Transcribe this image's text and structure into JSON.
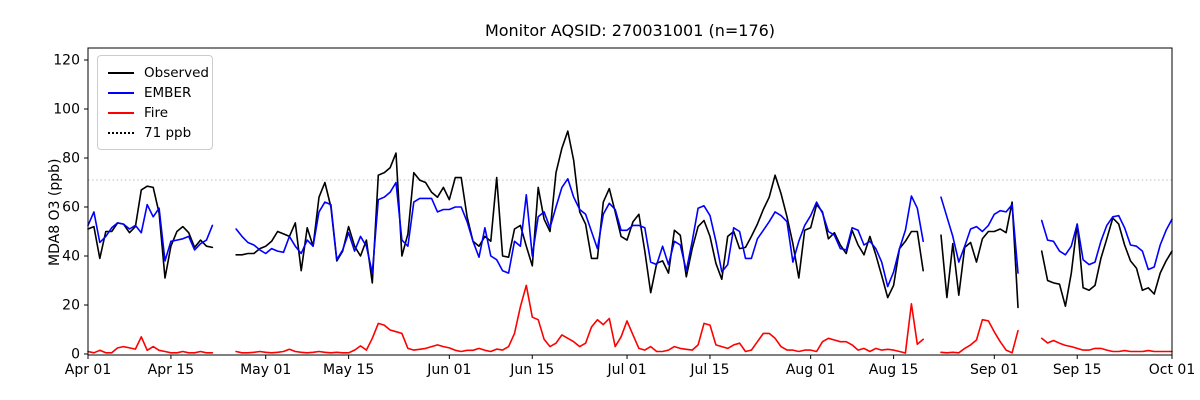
{
  "chart_data": {
    "type": "line",
    "title": "Monitor AQSID: 270031001 (n=176)",
    "ylabel": "MDA8 O3 (ppb)",
    "xlabel": "",
    "n_points": 176,
    "grid": false,
    "legend_position": "upper left",
    "ylim": [
      -0.41,
      124.9
    ],
    "y_ticks": [
      0,
      20,
      40,
      60,
      80,
      100,
      120
    ],
    "n_days": 184,
    "x_start_date": "Apr 01",
    "x_end_date": "Oct 01",
    "x_tick_days": [
      0,
      14,
      30,
      44,
      61,
      75,
      91,
      105,
      122,
      136,
      153,
      167,
      183
    ],
    "x_tick_labels": [
      "Apr 01",
      "Apr 15",
      "May 01",
      "May 15",
      "Jun 01",
      "Jun 15",
      "Jul 01",
      "Jul 15",
      "Aug 01",
      "Aug 15",
      "Sep 01",
      "Sep 15",
      "Oct 01"
    ],
    "threshold": {
      "value": 71,
      "label": "71 ppb",
      "color": "#cfcfcf",
      "style": "dotted"
    },
    "series": [
      {
        "name": "Observed",
        "color": "#000000",
        "values": [
          51,
          52,
          39,
          50,
          50,
          53.5,
          53,
          49.5,
          52,
          67,
          68.5,
          68,
          57.5,
          31,
          44,
          50,
          52,
          49.5,
          43.5,
          46.5,
          44,
          43.5,
          null,
          null,
          null,
          40.5,
          40.5,
          41,
          41,
          43,
          44,
          46,
          50,
          49,
          48,
          53.5,
          34,
          51.5,
          44,
          64,
          70,
          60,
          38,
          42,
          52,
          44,
          40,
          46.5,
          29,
          73,
          74,
          76,
          82,
          40,
          49,
          74,
          71,
          70,
          66,
          64,
          68,
          63,
          72,
          72,
          56,
          46,
          44,
          48,
          46,
          72,
          40,
          39.5,
          51,
          52.5,
          44,
          36,
          68,
          55,
          50,
          74,
          84,
          91,
          79,
          58,
          53,
          39,
          39,
          62,
          67.5,
          58,
          48,
          46.5,
          54,
          57,
          42,
          25,
          37,
          38,
          33,
          50.5,
          48.5,
          31.5,
          43,
          52,
          54.5,
          48,
          37,
          30.5,
          48,
          50,
          43,
          43.5,
          48,
          53,
          59,
          64,
          73,
          65.5,
          56,
          45,
          31,
          50.5,
          51.5,
          61,
          58,
          47,
          49.5,
          44.5,
          41,
          50.5,
          44.5,
          40.5,
          48,
          40.5,
          32,
          23,
          28,
          43,
          46,
          50,
          50,
          34,
          null,
          null,
          48.5,
          23,
          45,
          24,
          43.5,
          45.5,
          37.5,
          47,
          50,
          50,
          51,
          49.5,
          62,
          19,
          null,
          null,
          null,
          42,
          30,
          29,
          28.5,
          19.5,
          33,
          53,
          27,
          26,
          28,
          39,
          47,
          55.5,
          53,
          44.5,
          38,
          35,
          26,
          27,
          24.5,
          33,
          38,
          42
        ]
      },
      {
        "name": "EMBER",
        "color": "#0000ff",
        "values": [
          52.5,
          58,
          45.5,
          48,
          51.5,
          53.5,
          53,
          51,
          52.5,
          49.5,
          61,
          56,
          59.5,
          38,
          46,
          46.5,
          47,
          48,
          42.5,
          45,
          46.5,
          52.5,
          null,
          null,
          null,
          51,
          48,
          45.5,
          44.5,
          42.5,
          41,
          43,
          42,
          41.5,
          48,
          44,
          41,
          46.5,
          44,
          58,
          62,
          61,
          38.5,
          42.5,
          49.5,
          42,
          48,
          44,
          33,
          63,
          64,
          66,
          70,
          46.5,
          44,
          62,
          63.5,
          63.5,
          63.5,
          58,
          59,
          59,
          60,
          60,
          54,
          46,
          39.5,
          51.5,
          40,
          38.5,
          34,
          33,
          46,
          44,
          65,
          40,
          56,
          58,
          51.5,
          60,
          68,
          71.5,
          64,
          59,
          57,
          50,
          43,
          57,
          61.5,
          59,
          50.5,
          50.5,
          52.5,
          52.5,
          51.5,
          37.5,
          36.5,
          44,
          36.5,
          46,
          44.5,
          34,
          46,
          59.5,
          60.5,
          56.5,
          46,
          33.5,
          36.5,
          51.5,
          50,
          39,
          39,
          47,
          50.5,
          54,
          58,
          56.5,
          54,
          37.5,
          46,
          52.5,
          56.5,
          62,
          57.5,
          50,
          48.5,
          43,
          42.5,
          51.5,
          50.5,
          44.5,
          46,
          43,
          37.5,
          27.5,
          33.5,
          43,
          50.5,
          64.5,
          59.5,
          46,
          null,
          null,
          64,
          56,
          48,
          37.5,
          44,
          51,
          52,
          50,
          52.5,
          57,
          58.5,
          58,
          61,
          33,
          null,
          null,
          null,
          54.5,
          46.5,
          46,
          42,
          40.5,
          44,
          53,
          38.5,
          36.5,
          37.5,
          46,
          52.5,
          56,
          56.5,
          51.5,
          44.5,
          44,
          42,
          34.5,
          35.5,
          44.5,
          50.5,
          55
        ]
      },
      {
        "name": "Fire",
        "color": "#ff0000",
        "values": [
          1,
          0.5,
          1.5,
          0.5,
          0.5,
          2.5,
          3,
          2.5,
          2,
          7,
          1.5,
          3,
          1.5,
          1,
          0.5,
          0.5,
          1,
          0.5,
          0.5,
          1,
          0.5,
          0.5,
          null,
          null,
          null,
          1,
          0.5,
          0.5,
          0.7,
          1,
          0.7,
          0.5,
          0.7,
          1,
          1.9,
          1,
          0.7,
          0.5,
          0.7,
          1,
          0.7,
          0.5,
          0.7,
          0.5,
          0.5,
          1.6,
          3.3,
          1.6,
          6.4,
          12.5,
          11.8,
          9.8,
          9.1,
          8.4,
          2.3,
          1.6,
          1.9,
          2.3,
          3,
          3.7,
          3,
          2.5,
          1.5,
          1,
          1.5,
          1.5,
          2.3,
          1.5,
          1,
          2,
          1.6,
          3,
          8.4,
          19.3,
          28,
          15,
          14,
          6,
          3,
          4.4,
          7.8,
          6.4,
          5,
          3,
          4.4,
          11,
          14,
          12,
          14.5,
          3,
          7,
          13.5,
          7.8,
          2.3,
          1.6,
          3,
          1,
          1,
          1.6,
          3,
          2.3,
          1.9,
          1.6,
          3.7,
          12.5,
          11.8,
          3.7,
          3,
          2.3,
          3.7,
          4.4,
          1,
          1.6,
          5,
          8.4,
          8.4,
          6.4,
          3,
          1.6,
          1.6,
          1,
          1.6,
          1.6,
          1,
          5,
          6.4,
          5.7,
          5,
          5,
          3.7,
          1.6,
          2.3,
          1,
          2.3,
          1.6,
          1.9,
          1.6,
          1,
          0.4,
          20.5,
          4,
          6,
          null,
          null,
          0.7,
          0.5,
          0.7,
          0.5,
          2.3,
          3.7,
          5.7,
          14,
          13.5,
          9,
          5,
          1.6,
          0.5,
          9.5,
          null,
          null,
          null,
          6.4,
          4.5,
          5.5,
          4.4,
          3.5,
          3,
          2.3,
          1.6,
          1.6,
          2.3,
          2.3,
          1.6,
          1,
          1,
          1.4,
          1,
          1,
          1,
          1.4,
          1,
          1,
          1,
          1
        ]
      }
    ],
    "legend_entries": [
      "Observed",
      "EMBER",
      "Fire",
      "71 ppb"
    ]
  }
}
